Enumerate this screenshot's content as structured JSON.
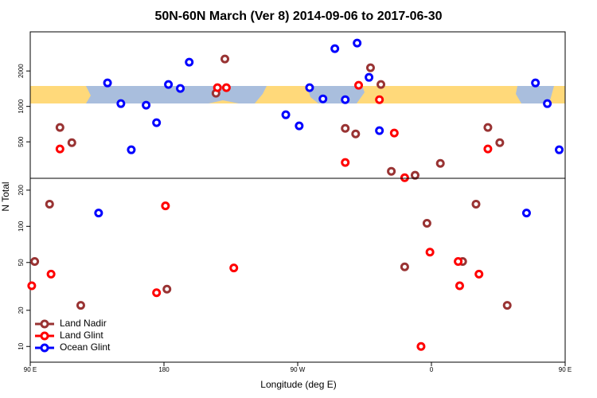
{
  "chart_data": {
    "type": "scatter",
    "title": "50N-60N March (Ver 8)   2014-09-06 to 2017-06-30",
    "xlabel": "Longitude (deg E)",
    "ylabel": "N Total",
    "xlim": [
      90,
      450
    ],
    "xticks": [
      {
        "value": 90,
        "label": "90 E"
      },
      180,
      {
        "value": 270,
        "label": "90 W"
      },
      {
        "value": 360,
        "label": "0"
      },
      {
        "value": 450,
        "label": "90 E"
      }
    ],
    "log_y": true,
    "legend": "lower left",
    "series": [
      {
        "name": "Land Nadir",
        "color": "#993333"
      },
      {
        "name": "Land Glint",
        "color": "#ff0000"
      },
      {
        "name": "Ocean Glint",
        "color": "#0000ff"
      }
    ],
    "panels": [
      {
        "ylim": [
          245,
          4300
        ],
        "yticks": [
          500,
          1000,
          2000
        ],
        "series": [
          {
            "x": [
              110,
              118,
              221,
              215,
              302,
              309,
              319,
              326,
              333,
              349,
              366,
              398,
              406
            ],
            "values": [
              662,
              492,
              2527,
              1293,
              651,
              584,
              2130,
              1535,
              281,
              260,
              328,
              662,
              492
            ]
          },
          {
            "x": [
              110,
              216,
              222,
              302,
              311,
              325,
              335,
              342,
              398
            ],
            "values": [
              435,
              1442,
              1442,
              334,
              1512,
              1141,
              594,
              248,
              435
            ]
          },
          {
            "x": [
              142,
              151,
              158,
              168,
              175,
              183,
              191,
              197,
              262,
              271,
              278,
              287,
              295,
              302,
              310,
              318,
              325,
              430,
              438,
              446
            ],
            "values": [
              1583,
              1056,
              428,
              1024,
              727,
              1535,
              1420,
              2374,
              849,
              683,
              1442,
              1159,
              3094,
              1141,
              3451,
              1765,
              622,
              1583,
              1056,
              428
            ]
          }
        ]
      },
      {
        "ylim": [
          7.4,
          251
        ],
        "yticks": [
          10,
          20,
          50,
          100,
          200
        ],
        "series": [
          {
            "x": [
              93,
              103,
              124,
              182,
              342,
              357,
              381,
              390,
              411
            ],
            "values": [
              51,
              153,
              22,
              30,
              46,
              106,
              51,
              153,
              22
            ]
          },
          {
            "x": [
              91,
              104,
              175,
              181,
              227,
              353,
              359,
              378,
              379,
              392
            ],
            "values": [
              32,
              40,
              28,
              148,
              45,
              10,
              61,
              51,
              32,
              40
            ]
          },
          {
            "x": [
              136,
              424
            ],
            "values": [
              129,
              129
            ]
          }
        ]
      }
    ]
  }
}
